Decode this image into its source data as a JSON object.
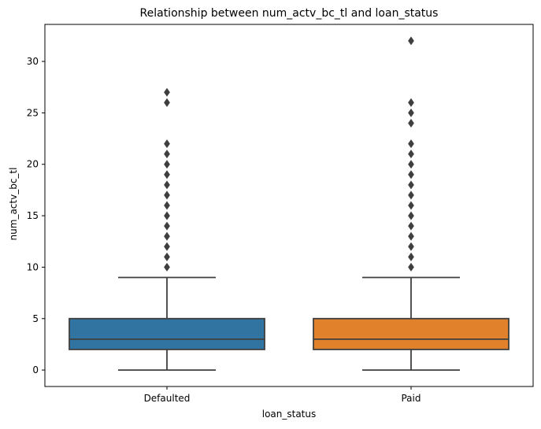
{
  "chart_data": {
    "type": "box",
    "title": "Relationship between num_actv_bc_tl and loan_status",
    "xlabel": "loan_status",
    "ylabel": "num_actv_bc_tl",
    "ylim": [
      -1.6,
      33.6
    ],
    "yticks": [
      0,
      5,
      10,
      15,
      20,
      25,
      30
    ],
    "grid": false,
    "categories": [
      "Defaulted",
      "Paid"
    ],
    "boxes": [
      {
        "category": "Defaulted",
        "color": "#3274a1",
        "whisker_low": 0,
        "q1": 2,
        "median": 3,
        "q3": 5,
        "whisker_high": 9,
        "outliers": [
          10,
          11,
          12,
          13,
          14,
          15,
          16,
          17,
          18,
          19,
          20,
          21,
          22,
          26,
          27
        ]
      },
      {
        "category": "Paid",
        "color": "#e1812c",
        "whisker_low": 0,
        "q1": 2,
        "median": 3,
        "q3": 5,
        "whisker_high": 9,
        "outliers": [
          10,
          11,
          12,
          13,
          14,
          15,
          16,
          17,
          18,
          19,
          20,
          21,
          22,
          24,
          25,
          26,
          32
        ]
      }
    ]
  }
}
